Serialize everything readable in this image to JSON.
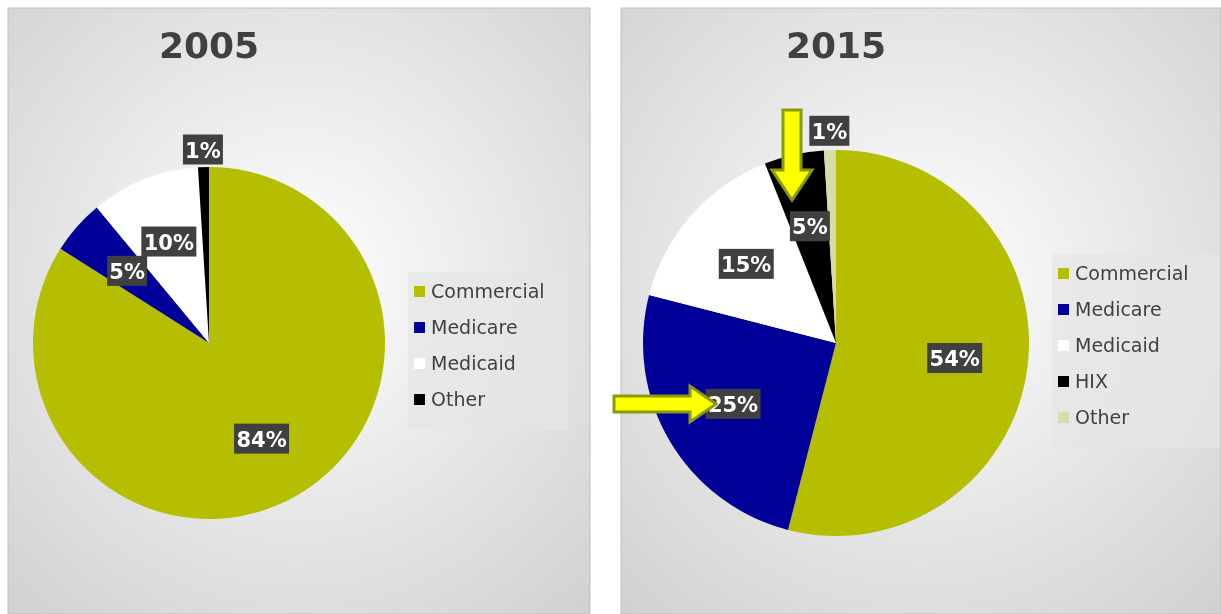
{
  "chart_data": [
    {
      "type": "pie",
      "title": "2005",
      "categories": [
        "Commercial",
        "Medicare",
        "Medicaid",
        "Other"
      ],
      "values": [
        84,
        5,
        10,
        1
      ],
      "value_labels": [
        "84%",
        "5%",
        "10%",
        "1%"
      ],
      "colors": [
        "#b5be00",
        "#000099",
        "#ffffff",
        "#000000"
      ],
      "legend": "right"
    },
    {
      "type": "pie",
      "title": "2015",
      "categories": [
        "Commercial",
        "Medicare",
        "Medicaid",
        "HIX",
        "Other"
      ],
      "values": [
        54,
        25,
        15,
        5,
        1
      ],
      "value_labels": [
        "54%",
        "25%",
        "15%",
        "5%",
        "1%"
      ],
      "colors": [
        "#b5be00",
        "#000099",
        "#ffffff",
        "#000000",
        "#d8dca8"
      ],
      "legend": "right"
    }
  ]
}
